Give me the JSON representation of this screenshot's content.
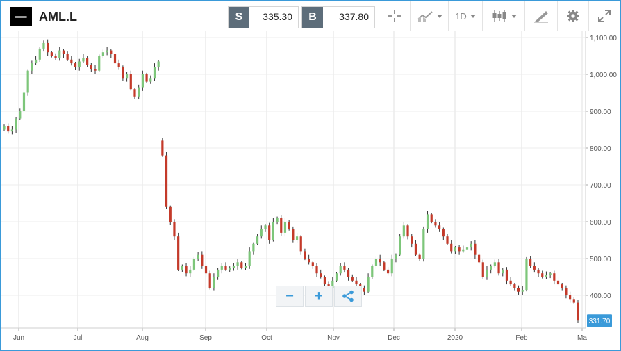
{
  "header": {
    "symbol": "AML.L",
    "sell_label": "S",
    "sell_price": "335.30",
    "buy_label": "B",
    "buy_price": "337.80",
    "timeframe": "1D"
  },
  "icons": {
    "logo": "aston-martin-logo",
    "crosshair": "crosshair-icon",
    "indicators": "indicators-icon",
    "chart_type": "candlestick-icon",
    "draw": "draw-tool-icon",
    "settings": "gear-icon",
    "fullscreen": "expand-icon",
    "zoom_out": "minus-icon",
    "zoom_in": "plus-icon",
    "share": "share-icon"
  },
  "colors": {
    "up": "#7dc67a",
    "down": "#c43a2a",
    "frame": "#3a9ad9",
    "price_tag": "#3a9ad9"
  },
  "chart_data": {
    "type": "candlestick",
    "x_tick_labels": [
      "Jun",
      "Jul",
      "Aug",
      "Sep",
      "Oct",
      "Nov",
      "Dec",
      "2020",
      "Feb",
      "Ma"
    ],
    "y_tick_labels": [
      "1,100.00",
      "1,000.00",
      "900.00",
      "800.00",
      "700.00",
      "600.00",
      "500.00",
      "400.00"
    ],
    "ylim": [
      345,
      1105
    ],
    "last_price_label": "331.70",
    "last_price": 331.7,
    "grid": true,
    "close_series": [
      860,
      845,
      850,
      880,
      900,
      950,
      1010,
      1030,
      1040,
      1070,
      1085,
      1060,
      1050,
      1045,
      1065,
      1055,
      1040,
      1030,
      1020,
      1035,
      1045,
      1025,
      1015,
      1010,
      1050,
      1060,
      1065,
      1055,
      1030,
      1020,
      990,
      1000,
      960,
      940,
      965,
      1000,
      980,
      990,
      1020,
      1035,
      780,
      640,
      600,
      560,
      470,
      480,
      460,
      470,
      500,
      510,
      480,
      460,
      420,
      450,
      470,
      480,
      470,
      475,
      480,
      490,
      475,
      480,
      520,
      540,
      560,
      580,
      590,
      550,
      600,
      610,
      570,
      600,
      580,
      550,
      560,
      520,
      500,
      490,
      480,
      460,
      450,
      430,
      420,
      440,
      460,
      480,
      470,
      450,
      440,
      430,
      420,
      410,
      450,
      480,
      500,
      490,
      470,
      460,
      500,
      510,
      560,
      590,
      560,
      540,
      510,
      500,
      580,
      620,
      600,
      590,
      580,
      560,
      540,
      520,
      530,
      520,
      525,
      530,
      540,
      510,
      490,
      450,
      470,
      480,
      490,
      460,
      470,
      440,
      430,
      420,
      410,
      415,
      500,
      480,
      470,
      460,
      450,
      455,
      460,
      440,
      430,
      420,
      400,
      390,
      380,
      331.7
    ]
  }
}
